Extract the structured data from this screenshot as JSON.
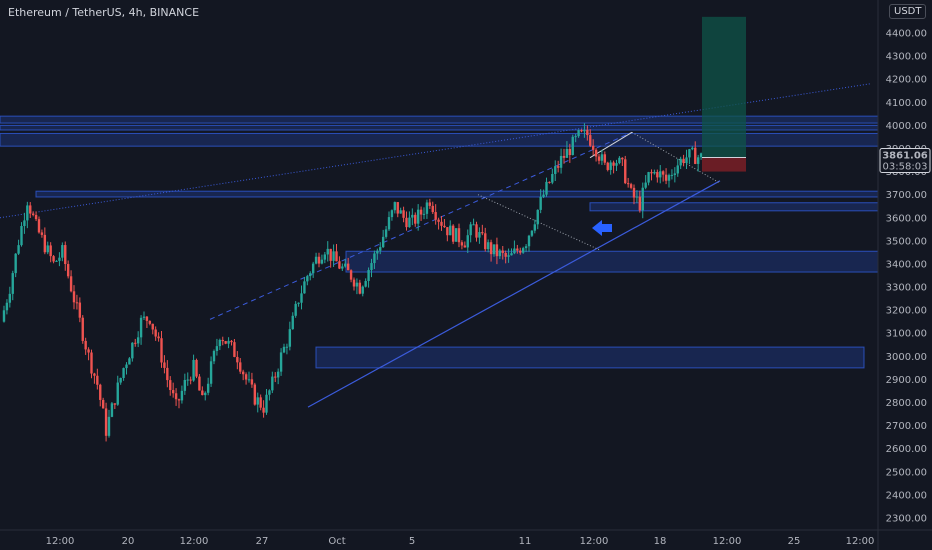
{
  "header": {
    "title": "Ethereum / TetherUS, 4h, BINANCE",
    "currency": "USDT"
  },
  "price_tag": {
    "price": "3861.06",
    "countdown": "03:58:03"
  },
  "colors": {
    "background": "#131722",
    "up": "#26a69a",
    "down": "#ef5350",
    "zone": "#1e3a8a",
    "trendline": "#3b5bdb",
    "arrow": "#2962ff"
  },
  "chart_data": {
    "type": "candlestick",
    "y_ticks": [
      4400,
      4300,
      4200,
      4100,
      4000,
      3900,
      3800,
      3700,
      3600,
      3500,
      3400,
      3300,
      3200,
      3100,
      3000,
      2900,
      2800,
      2700,
      2600,
      2500,
      2400,
      2300
    ],
    "y_tick_labels": [
      "4400.00",
      "4300.00",
      "4200.00",
      "4100.00",
      "4000.00",
      "3900.00",
      "3800.00",
      "3700.00",
      "3600.00",
      "3500.00",
      "3400.00",
      "3300.00",
      "3200.00",
      "3100.00",
      "3000.00",
      "2900.00",
      "2800.00",
      "2700.00",
      "2600.00",
      "2500.00",
      "2400.00",
      "2300.00"
    ],
    "ylim": [
      2260,
      4480
    ],
    "x_labels": [
      "12:00",
      "20",
      "12:00",
      "27",
      "Oct",
      "5",
      "11",
      "12:00",
      "18",
      "12:00",
      "25",
      "12:00"
    ],
    "price_path": [
      3150,
      3300,
      3500,
      3680,
      3560,
      3480,
      3400,
      3450,
      3300,
      3150,
      3000,
      2880,
      2680,
      2820,
      2950,
      3050,
      3150,
      3170,
      3050,
      2900,
      2780,
      2880,
      2950,
      2800,
      2950,
      3100,
      3050,
      3000,
      2900,
      2820,
      2780,
      2880,
      3000,
      3100,
      3250,
      3350,
      3420,
      3470,
      3420,
      3380,
      3350,
      3300,
      3380,
      3460,
      3550,
      3650,
      3600,
      3580,
      3620,
      3680,
      3600,
      3550,
      3520,
      3500,
      3560,
      3500,
      3460,
      3440,
      3420,
      3460,
      3500,
      3600,
      3700,
      3780,
      3850,
      3900,
      3950,
      3960,
      3900,
      3820,
      3860,
      3820,
      3700,
      3660,
      3780,
      3800,
      3760,
      3820,
      3860,
      3870,
      3861
    ],
    "zones": [
      {
        "low": 4010,
        "high": 4040
      },
      {
        "low": 3980,
        "high": 4000
      },
      {
        "low": 3910,
        "high": 3965
      },
      {
        "low": 3690,
        "high": 3715
      },
      {
        "low": 3630,
        "high": 3665
      },
      {
        "low": 3365,
        "high": 3455
      },
      {
        "low": 2950,
        "high": 3040
      }
    ],
    "position": {
      "entry": 3861,
      "target": 4470,
      "stop": 3800
    }
  }
}
